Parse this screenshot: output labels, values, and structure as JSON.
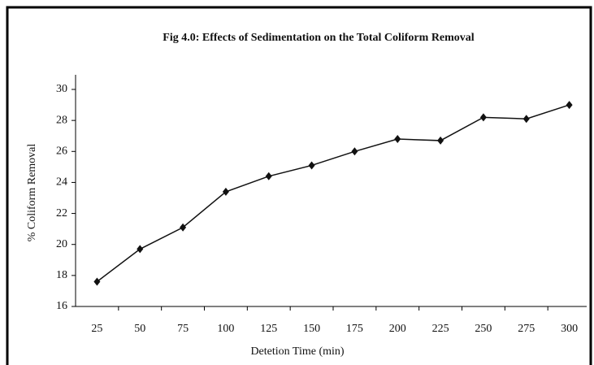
{
  "chart_data": {
    "type": "line",
    "title": "Fig 4.0: Effects of  Sedimentation on the Total Coliform Removal",
    "x_label": "Detetion Time (min)",
    "y_label": "% Coliform Removal",
    "categories": [
      "25",
      "50",
      "75",
      "100",
      "125",
      "150",
      "175",
      "200",
      "225",
      "250",
      "275",
      "300"
    ],
    "series": [
      {
        "name": "% Coliform Removal",
        "color": "#111111",
        "values": [
          17.6,
          19.7,
          21.1,
          23.4,
          24.4,
          25.1,
          26.0,
          26.8,
          26.7,
          28.2,
          28.1,
          29.0
        ]
      }
    ],
    "ylim": [
      16,
      30
    ],
    "yticks": [
      16,
      18,
      20,
      22,
      24,
      26,
      28,
      30
    ],
    "grid": false
  }
}
